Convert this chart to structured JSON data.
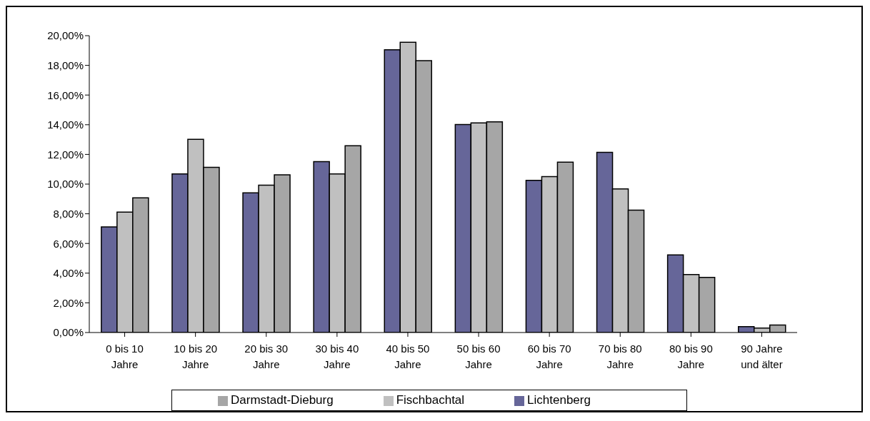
{
  "chart_data": {
    "type": "bar",
    "categories": [
      "0 bis 10 Jahre",
      "10 bis 20 Jahre",
      "20 bis 30 Jahre",
      "30 bis 40 Jahre",
      "40 bis 50 Jahre",
      "50 bis 60 Jahre",
      "60 bis 70 Jahre",
      "70 bis 80 Jahre",
      "80 bis 90 Jahre",
      "90 Jahre und älter"
    ],
    "series": [
      {
        "name": "Lichtenberg",
        "color": "#666699",
        "values": [
          7.12,
          10.68,
          9.41,
          11.52,
          19.05,
          14.02,
          10.25,
          12.14,
          5.23,
          0.4
        ]
      },
      {
        "name": "Fischbachtal",
        "color": "#c0c0c0",
        "values": [
          8.11,
          13.02,
          9.93,
          10.68,
          19.55,
          14.12,
          10.5,
          9.68,
          3.91,
          0.3
        ]
      },
      {
        "name": "Darmstadt-Dieburg",
        "color": "#a6a6a6",
        "values": [
          9.07,
          11.13,
          10.63,
          12.59,
          18.32,
          14.2,
          11.48,
          8.25,
          3.71,
          0.5
        ]
      }
    ],
    "ylim": [
      0,
      20
    ],
    "yticks": [
      {
        "value": 0,
        "label": "0,00%"
      },
      {
        "value": 2,
        "label": "2,00%"
      },
      {
        "value": 4,
        "label": "4,00%"
      },
      {
        "value": 6,
        "label": "6,00%"
      },
      {
        "value": 8,
        "label": "8,00%"
      },
      {
        "value": 10,
        "label": "10,00%"
      },
      {
        "value": 12,
        "label": "12,00%"
      },
      {
        "value": 14,
        "label": "14,00%"
      },
      {
        "value": 16,
        "label": "16,00%"
      },
      {
        "value": 18,
        "label": "18,00%"
      },
      {
        "value": 20,
        "label": "20,00%"
      }
    ],
    "grid": false,
    "legend": "bottom"
  }
}
